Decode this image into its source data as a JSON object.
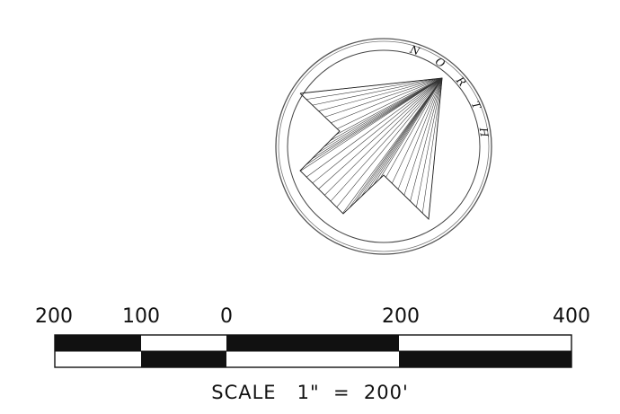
{
  "compass": {
    "north_label": "NORTH",
    "letters": [
      "N",
      "O",
      "R",
      "T",
      "H"
    ]
  },
  "scale_bar": {
    "tick_labels": [
      "200",
      "100",
      "0",
      "200",
      "400"
    ],
    "caption": "SCALE   1\"  =  200'"
  },
  "colors": {
    "ink": "#111111",
    "paper": "#ffffff"
  }
}
